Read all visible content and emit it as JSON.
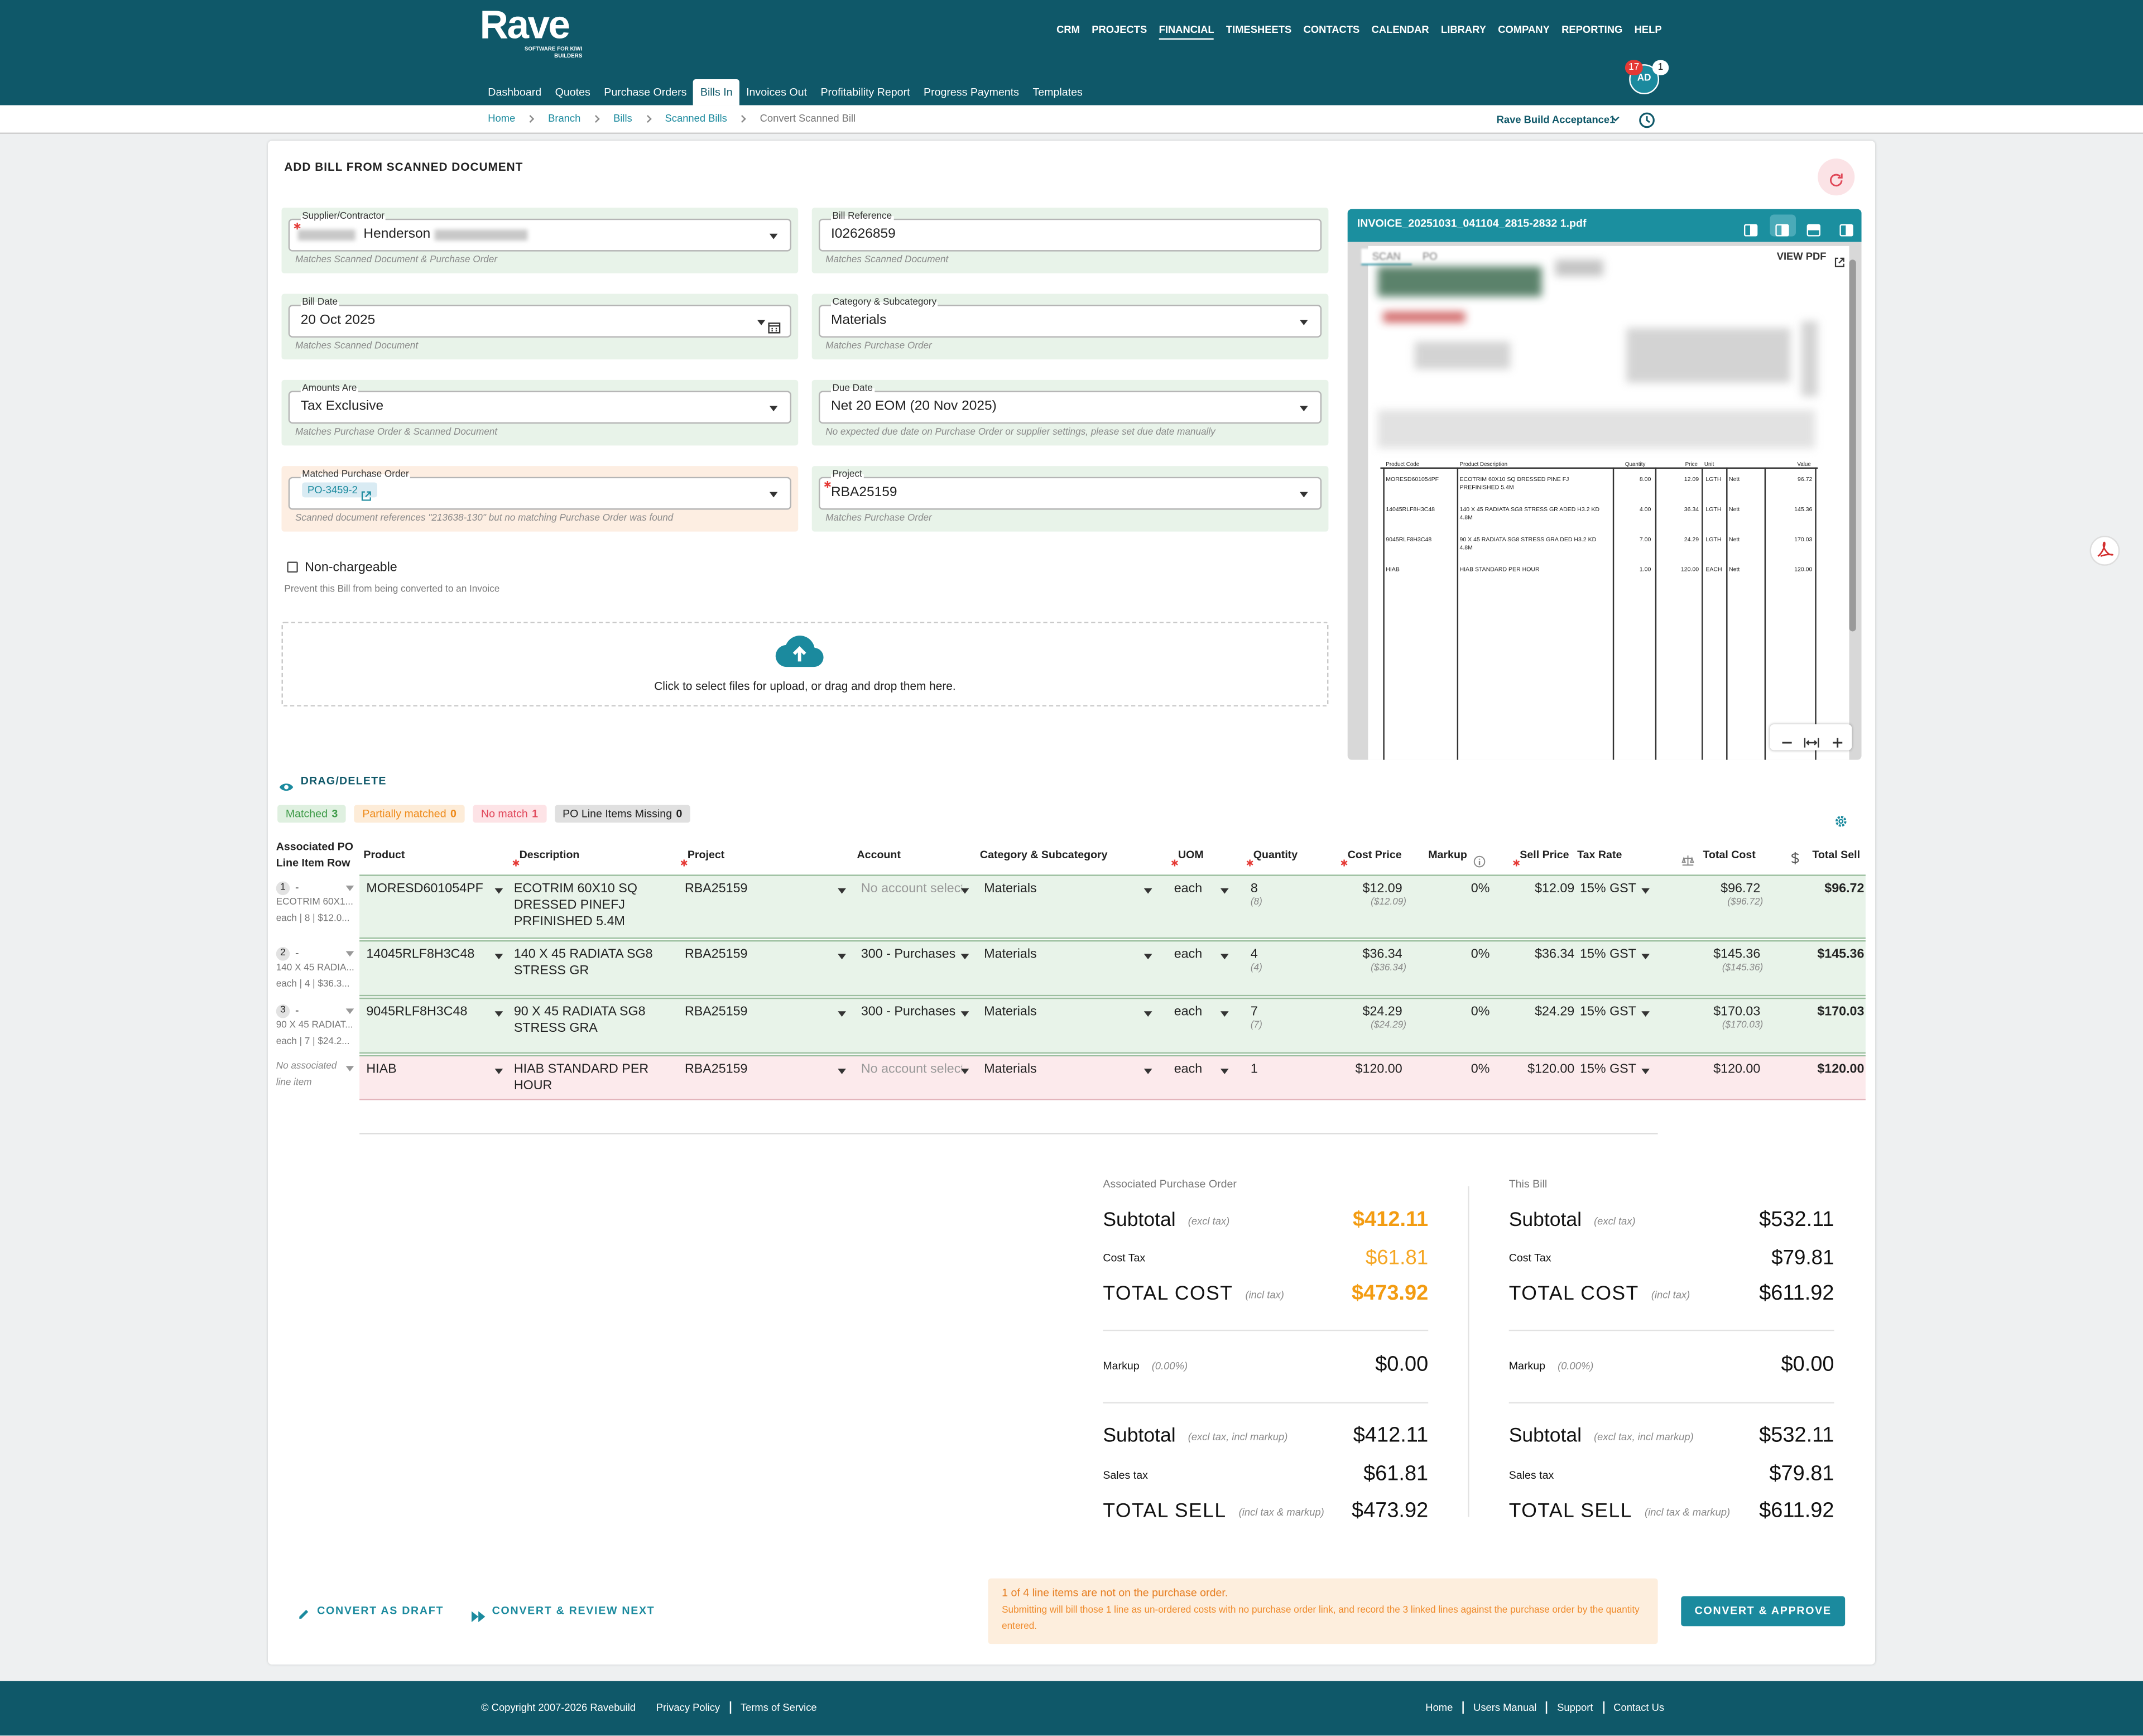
{
  "header": {
    "logo": "Rave",
    "logo_tagline": "SOFTWARE FOR KIWI BUILDERS",
    "nav": [
      "CRM",
      "PROJECTS",
      "FINANCIAL",
      "TIMESHEETS",
      "CONTACTS",
      "CALENDAR",
      "LIBRARY",
      "COMPANY",
      "REPORTING",
      "HELP"
    ],
    "notifications": 17,
    "messages": 1,
    "avatar": "AD"
  },
  "subnav": [
    "Dashboard",
    "Quotes",
    "Purchase Orders",
    "Bills In",
    "Invoices Out",
    "Profitability Report",
    "Progress Payments",
    "Templates"
  ],
  "breadcrumb": [
    "Home",
    "Branch",
    "Bills",
    "Scanned Bills",
    "Convert Scanned Bill"
  ],
  "company_selector": "Rave Build Acceptance1",
  "form": {
    "title": "ADD BILL FROM SCANNED DOCUMENT",
    "fields": [
      {
        "label": "Supplier/Contractor",
        "required": true,
        "control": "select",
        "obscured": true,
        "status": "match",
        "value": "Henderson",
        "note": "Matches Scanned Document & Purchase Order"
      },
      {
        "label": "Bill Reference",
        "required": false,
        "control": "text",
        "status": "match",
        "value": "I02626859",
        "note": "Matches Scanned Document"
      },
      {
        "label": "Bill Date",
        "required": false,
        "control": "date",
        "status": "match",
        "value": "20 Oct 2025",
        "note": "Matches Scanned Document"
      },
      {
        "label": "Category & Subcategory",
        "required": false,
        "control": "select",
        "status": "match",
        "value": "Materials",
        "note": "Matches Purchase Order"
      },
      {
        "label": "Amounts Are",
        "required": false,
        "control": "select",
        "status": "match",
        "value": "Tax Exclusive",
        "note": "Matches Purchase Order & Scanned Document"
      },
      {
        "label": "Due Date",
        "required": false,
        "control": "select",
        "status": "match",
        "value": "Net 20 EOM  (20 Nov 2025)",
        "note": "No expected due date on Purchase Order or supplier settings, please set due date manually"
      },
      {
        "label": "Matched Purchase Order",
        "required": false,
        "control": "link-select",
        "status": "warning",
        "value": "PO-3459-2",
        "note": "Scanned document references \"213638-130\" but no matching Purchase Order was found"
      },
      {
        "label": "Project",
        "required": true,
        "control": "select",
        "status": "match",
        "value": "RBA25159",
        "note": "Matches Purchase Order"
      }
    ],
    "non_chargeable": {
      "label": "Non-chargeable",
      "hint": "Prevent this Bill from being converted to an Invoice"
    },
    "upload": "Click to select files for upload, or drag and drop them here."
  },
  "pdf": {
    "filename": "INVOICE_20251031_041104_2815-2832 1.pdf",
    "tabs": [
      "SCAN",
      "PO"
    ],
    "view_pdf": "VIEW PDF",
    "table_headers": [
      "Product Code",
      "Product Description",
      "Quantity",
      "Price",
      "Unit",
      "Value"
    ],
    "table_rows": [
      [
        "MORESD601054PF",
        "ECOTRIM 60X10 SQ DRESSED PINE FJ PREFINISHED 5.4M",
        "8.00",
        "12.09",
        "LGTH",
        "Nett",
        "96.72"
      ],
      [
        "14045RLF8H3C48",
        "140 X 45 RADIATA SG8 STRESS GR ADED H3.2 KD 4.8M",
        "4.00",
        "36.34",
        "LGTH",
        "Nett",
        "145.36"
      ],
      [
        "9045RLF8H3C48",
        "90 X 45 RADIATA SG8 STRESS GRA DED H3.2 KD 4.8M",
        "7.00",
        "24.29",
        "LGTH",
        "Nett",
        "170.03"
      ],
      [
        "HIAB",
        "HIAB STANDARD PER HOUR",
        "1.00",
        "120.00",
        "EACH",
        "Nett",
        "120.00"
      ]
    ]
  },
  "lines": {
    "toggle": "DRAG/DELETE",
    "filters": [
      {
        "label": "Matched",
        "count": 3
      },
      {
        "label": "Partially matched",
        "count": 0
      },
      {
        "label": "No match",
        "count": 1
      },
      {
        "label": "PO Line Items Missing",
        "count": 0
      }
    ],
    "columns": [
      {
        "label": "Associated PO Line Item Row",
        "required": false
      },
      {
        "label": "Product",
        "required": false
      },
      {
        "label": "Description",
        "required": true
      },
      {
        "label": "Project",
        "required": true
      },
      {
        "label": "Account",
        "required": false
      },
      {
        "label": "Category & Subcategory",
        "required": false
      },
      {
        "label": "UOM",
        "required": true
      },
      {
        "label": "Quantity",
        "required": true
      },
      {
        "label": "Cost Price",
        "required": true
      },
      {
        "label": "Markup",
        "required": false
      },
      {
        "label": "Sell Price",
        "required": true
      },
      {
        "label": "Tax Rate",
        "required": false
      },
      {
        "label": "Total Cost",
        "required": false
      },
      {
        "label": "Total Sell",
        "required": false
      }
    ],
    "rows": [
      {
        "status": "matched",
        "po_num": 1,
        "po_text": "-",
        "po_desc": "ECOTRIM 60X1...",
        "po_sub": "each | 8 | $12.0...",
        "product": "MORESD601054PF",
        "description": "ECOTRIM 60X10 SQ DRESSED PINEFJ PRFINISHED 5.4M",
        "project": "RBA25159",
        "account": "No account selected",
        "category": "Materials",
        "uom": "each",
        "quantity": "8",
        "quantity_sub": "(8)",
        "cost_price": "$12.09",
        "cost_sub": "($12.09)",
        "markup": "0%",
        "sell_price": "$12.09",
        "tax_rate": "15% GST",
        "total_cost": "$96.72",
        "total_cost_sub": "($96.72)",
        "total_sell": "$96.72"
      },
      {
        "status": "matched",
        "po_num": 2,
        "po_text": "-",
        "po_desc": "140 X 45 RADIA...",
        "po_sub": "each | 4 | $36.3...",
        "product": "14045RLF8H3C48",
        "description": "140 X 45 RADIATA SG8 STRESS GR",
        "project": "RBA25159",
        "account": "300 - Purchases",
        "category": "Materials",
        "uom": "each",
        "quantity": "4",
        "quantity_sub": "(4)",
        "cost_price": "$36.34",
        "cost_sub": "($36.34)",
        "markup": "0%",
        "sell_price": "$36.34",
        "tax_rate": "15% GST",
        "total_cost": "$145.36",
        "total_cost_sub": "($145.36)",
        "total_sell": "$145.36"
      },
      {
        "status": "matched",
        "po_num": 3,
        "po_text": "-",
        "po_desc": "90 X 45 RADIAT...",
        "po_sub": "each | 7 | $24.2...",
        "product": "9045RLF8H3C48",
        "description": "90 X 45 RADIATA SG8 STRESS GRA",
        "project": "RBA25159",
        "account": "300 - Purchases",
        "category": "Materials",
        "uom": "each",
        "quantity": "7",
        "quantity_sub": "(7)",
        "cost_price": "$24.29",
        "cost_sub": "($24.29)",
        "markup": "0%",
        "sell_price": "$24.29",
        "tax_rate": "15% GST",
        "total_cost": "$170.03",
        "total_cost_sub": "($170.03)",
        "total_sell": "$170.03"
      },
      {
        "status": "unmatched",
        "po_text": "No associated line item",
        "product": "HIAB",
        "description": "HIAB STANDARD PER HOUR",
        "project": "RBA25159",
        "account": "No account selected",
        "category": "Materials",
        "uom": "each",
        "quantity": "1",
        "cost_price": "$120.00",
        "markup": "0%",
        "sell_price": "$120.00",
        "tax_rate": "15% GST",
        "total_cost": "$120.00",
        "total_sell": "$120.00"
      }
    ]
  },
  "totals": [
    {
      "heading": "Associated Purchase Order",
      "rows": [
        {
          "label": "Subtotal",
          "qualifier": "(excl tax)",
          "value": "$412.11"
        },
        {
          "label": "Cost Tax",
          "value": "$61.81"
        },
        {
          "label": "TOTAL COST",
          "qualifier": "(incl tax)",
          "value": "$473.92"
        },
        {
          "label": "Markup",
          "qualifier": "(0.00%)",
          "value": "$0.00"
        },
        {
          "label": "Subtotal",
          "qualifier": "(excl tax, incl markup)",
          "value": "$412.11"
        },
        {
          "label": "Sales tax",
          "value": "$61.81"
        },
        {
          "label": "TOTAL SELL",
          "qualifier": "(incl tax & markup)",
          "value": "$473.92"
        }
      ]
    },
    {
      "heading": "This Bill",
      "rows": [
        {
          "label": "Subtotal",
          "qualifier": "(excl tax)",
          "value": "$532.11"
        },
        {
          "label": "Cost Tax",
          "value": "$79.81"
        },
        {
          "label": "TOTAL COST",
          "qualifier": "(incl tax)",
          "value": "$611.92"
        },
        {
          "label": "Markup",
          "qualifier": "(0.00%)",
          "value": "$0.00"
        },
        {
          "label": "Subtotal",
          "qualifier": "(excl tax, incl markup)",
          "value": "$532.11"
        },
        {
          "label": "Sales tax",
          "value": "$79.81"
        },
        {
          "label": "TOTAL SELL",
          "qualifier": "(incl tax & markup)",
          "value": "$611.92"
        }
      ]
    }
  ],
  "actions": {
    "draft": "CONVERT AS DRAFT",
    "review_next": "CONVERT & REVIEW NEXT",
    "approve": "CONVERT & APPROVE",
    "warning_title": "1 of 4 line items are not on the purchase order.",
    "warning_body": "Submitting will bill those 1 line as un-ordered costs with no purchase order link, and record the 3 linked lines against the purchase order by the quantity entered."
  },
  "footer": {
    "copyright": "© Copyright 2007-2026 Ravebuild",
    "left_links": [
      "Privacy Policy",
      "Terms of Service"
    ],
    "right_links": [
      "Home",
      "Users Manual",
      "Support",
      "Contact Us"
    ]
  }
}
